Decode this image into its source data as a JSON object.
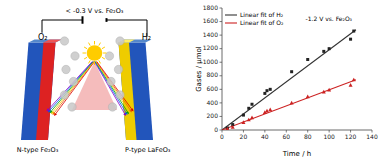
{
  "chart_data": [
    {
      "type": "diagram",
      "title": "< -0.3 V vs. Fe₂O₃",
      "annotations": [
        "O₂",
        "H₂",
        "N-type Fe₂O₃",
        "P-type LaFeO₃"
      ]
    },
    {
      "type": "line",
      "xlabel": "Time / h",
      "ylabel": "Gases / μmol",
      "annotations": [
        "-1.2 V vs. Fe₂O₃"
      ],
      "xlim": [
        0,
        140
      ],
      "ylim": [
        0,
        1800
      ],
      "xticks": [
        0,
        20,
        40,
        60,
        80,
        100,
        120,
        140
      ],
      "yticks": [
        0,
        200,
        400,
        600,
        800,
        1000,
        1200,
        1400,
        1600,
        1800
      ],
      "legend": "upper left",
      "series": [
        {
          "name": "Linear fit of H₂",
          "type": "line",
          "color": "#333333",
          "x": [
            0,
            125
          ],
          "values": [
            0,
            1480
          ]
        },
        {
          "name": "Linear fit of O₂",
          "type": "line",
          "color": "#cc2222",
          "x": [
            0,
            125
          ],
          "values": [
            0,
            740
          ]
        },
        {
          "type": "scatter",
          "color": "#222222",
          "marker": "square",
          "x": [
            5,
            10,
            20,
            25,
            28,
            40,
            42,
            45,
            65,
            80,
            95,
            100,
            120,
            123
          ],
          "values": [
            30,
            80,
            220,
            320,
            380,
            540,
            580,
            600,
            860,
            1040,
            1160,
            1200,
            1340,
            1460
          ]
        },
        {
          "type": "scatter",
          "color": "#cc2222",
          "marker": "triangle",
          "x": [
            5,
            10,
            20,
            25,
            28,
            40,
            42,
            45,
            65,
            80,
            95,
            100,
            120,
            123
          ],
          "values": [
            15,
            40,
            110,
            150,
            180,
            260,
            280,
            300,
            400,
            490,
            560,
            590,
            660,
            740
          ]
        }
      ]
    }
  ]
}
